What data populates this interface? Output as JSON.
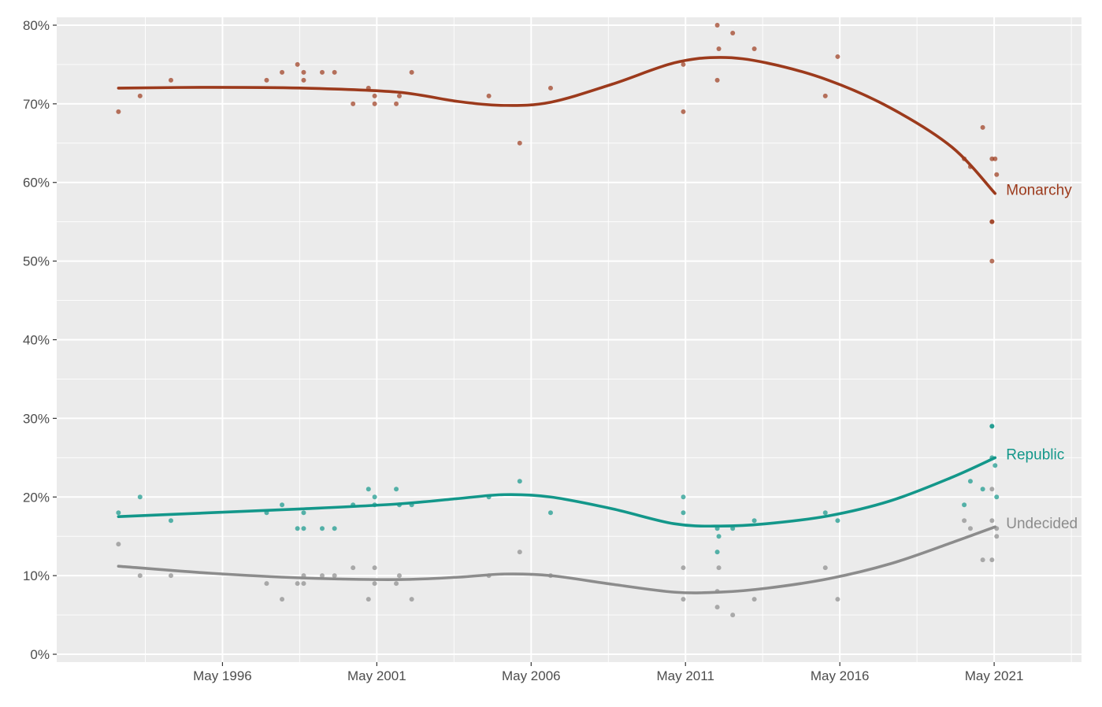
{
  "chart_data": {
    "type": "scatter",
    "title": "",
    "xlabel": "",
    "ylabel": "",
    "x_ticks": [
      "May 1996",
      "May 2001",
      "May 2006",
      "May 2011",
      "May 2016",
      "May 2021"
    ],
    "x_tick_values": [
      1996.37,
      2001.37,
      2006.37,
      2011.37,
      2016.37,
      2021.37
    ],
    "xlim": [
      1991.0,
      2024.2
    ],
    "y_ticks": [
      "0%",
      "10%",
      "20%",
      "30%",
      "40%",
      "50%",
      "60%",
      "70%",
      "80%"
    ],
    "y_tick_values": [
      0,
      10,
      20,
      30,
      40,
      50,
      60,
      70,
      80
    ],
    "ylim": [
      -1,
      81
    ],
    "grid": true,
    "background": "#ebebeb",
    "series": [
      {
        "name": "Monarchy",
        "color": "#9c3a1c",
        "points": [
          [
            1993.0,
            69
          ],
          [
            1993.7,
            71
          ],
          [
            1994.7,
            73
          ],
          [
            1997.8,
            73
          ],
          [
            1998.3,
            74
          ],
          [
            1998.8,
            75
          ],
          [
            1999.0,
            74
          ],
          [
            1999.0,
            73
          ],
          [
            1999.6,
            74
          ],
          [
            2000.0,
            74
          ],
          [
            2000.6,
            70
          ],
          [
            2001.1,
            72
          ],
          [
            2001.3,
            71
          ],
          [
            2001.3,
            70
          ],
          [
            2002.0,
            70
          ],
          [
            2002.1,
            71
          ],
          [
            2002.5,
            74
          ],
          [
            2005.0,
            71
          ],
          [
            2006.0,
            65
          ],
          [
            2007.0,
            72
          ],
          [
            2011.3,
            75
          ],
          [
            2011.3,
            69
          ],
          [
            2012.4,
            80
          ],
          [
            2012.45,
            77
          ],
          [
            2012.4,
            73
          ],
          [
            2012.9,
            79
          ],
          [
            2013.6,
            77
          ],
          [
            2015.9,
            71
          ],
          [
            2016.3,
            76
          ],
          [
            2020.4,
            63
          ],
          [
            2020.6,
            62
          ],
          [
            2021.0,
            67
          ],
          [
            2021.3,
            63
          ],
          [
            2021.4,
            63
          ],
          [
            2021.3,
            55
          ],
          [
            2021.3,
            55
          ],
          [
            2021.3,
            50
          ],
          [
            2021.45,
            61
          ]
        ],
        "trend": [
          [
            1993.0,
            72.0
          ],
          [
            1996.0,
            72.1
          ],
          [
            1999.0,
            72.0
          ],
          [
            2002.0,
            71.5
          ],
          [
            2004.0,
            70.3
          ],
          [
            2005.5,
            69.8
          ],
          [
            2007.0,
            70.2
          ],
          [
            2009.0,
            72.5
          ],
          [
            2011.0,
            75.2
          ],
          [
            2012.5,
            75.9
          ],
          [
            2014.0,
            75.2
          ],
          [
            2016.0,
            73.0
          ],
          [
            2018.0,
            69.5
          ],
          [
            2020.0,
            64.5
          ],
          [
            2021.4,
            58.6
          ]
        ]
      },
      {
        "name": "Republic",
        "color": "#13978a",
        "points": [
          [
            1993.0,
            18
          ],
          [
            1993.7,
            20
          ],
          [
            1994.7,
            17
          ],
          [
            1997.8,
            18
          ],
          [
            1998.3,
            19
          ],
          [
            1998.8,
            16
          ],
          [
            1999.0,
            16
          ],
          [
            1999.0,
            18
          ],
          [
            1999.6,
            16
          ],
          [
            2000.0,
            16
          ],
          [
            2000.6,
            19
          ],
          [
            2001.1,
            21
          ],
          [
            2001.3,
            20
          ],
          [
            2001.3,
            19
          ],
          [
            2002.0,
            21
          ],
          [
            2002.1,
            19
          ],
          [
            2002.5,
            19
          ],
          [
            2005.0,
            20
          ],
          [
            2006.0,
            22
          ],
          [
            2007.0,
            18
          ],
          [
            2011.3,
            20
          ],
          [
            2011.3,
            18
          ],
          [
            2012.4,
            16
          ],
          [
            2012.45,
            15
          ],
          [
            2012.4,
            13
          ],
          [
            2012.9,
            16
          ],
          [
            2013.6,
            17
          ],
          [
            2015.9,
            18
          ],
          [
            2016.3,
            17
          ],
          [
            2020.4,
            19
          ],
          [
            2020.6,
            22
          ],
          [
            2021.0,
            21
          ],
          [
            2021.3,
            25
          ],
          [
            2021.4,
            24
          ],
          [
            2021.3,
            29
          ],
          [
            2021.3,
            29
          ],
          [
            2021.45,
            20
          ]
        ],
        "trend": [
          [
            1993.0,
            17.5
          ],
          [
            1996.0,
            18.0
          ],
          [
            1999.0,
            18.5
          ],
          [
            2002.0,
            19.1
          ],
          [
            2004.0,
            19.8
          ],
          [
            2005.5,
            20.3
          ],
          [
            2007.0,
            20.0
          ],
          [
            2009.0,
            18.5
          ],
          [
            2011.0,
            16.6
          ],
          [
            2012.5,
            16.3
          ],
          [
            2014.0,
            16.6
          ],
          [
            2016.0,
            17.6
          ],
          [
            2018.0,
            19.5
          ],
          [
            2020.0,
            22.5
          ],
          [
            2021.4,
            25.0
          ]
        ]
      },
      {
        "name": "Undecided",
        "color": "#8c8c8c",
        "points": [
          [
            1993.0,
            14
          ],
          [
            1993.7,
            10
          ],
          [
            1994.7,
            10
          ],
          [
            1997.8,
            9
          ],
          [
            1998.3,
            7
          ],
          [
            1998.8,
            9
          ],
          [
            1999.0,
            10
          ],
          [
            1999.0,
            9
          ],
          [
            1999.6,
            10
          ],
          [
            2000.0,
            10
          ],
          [
            2000.6,
            11
          ],
          [
            2001.1,
            7
          ],
          [
            2001.3,
            11
          ],
          [
            2001.3,
            9
          ],
          [
            2002.0,
            9
          ],
          [
            2002.1,
            10
          ],
          [
            2002.5,
            7
          ],
          [
            2005.0,
            10
          ],
          [
            2006.0,
            13
          ],
          [
            2007.0,
            10
          ],
          [
            2011.3,
            11
          ],
          [
            2011.3,
            7
          ],
          [
            2012.4,
            8
          ],
          [
            2012.4,
            6
          ],
          [
            2012.45,
            11
          ],
          [
            2012.9,
            5
          ],
          [
            2013.6,
            7
          ],
          [
            2015.9,
            11
          ],
          [
            2016.3,
            7
          ],
          [
            2020.4,
            17
          ],
          [
            2020.6,
            16
          ],
          [
            2021.0,
            12
          ],
          [
            2021.3,
            12
          ],
          [
            2021.3,
            17
          ],
          [
            2021.3,
            21
          ],
          [
            2021.45,
            16
          ],
          [
            2021.45,
            15
          ]
        ],
        "trend": [
          [
            1993.0,
            11.2
          ],
          [
            1996.0,
            10.3
          ],
          [
            1999.0,
            9.7
          ],
          [
            2002.0,
            9.5
          ],
          [
            2004.0,
            9.8
          ],
          [
            2005.5,
            10.2
          ],
          [
            2007.0,
            10.0
          ],
          [
            2009.0,
            8.9
          ],
          [
            2011.0,
            7.9
          ],
          [
            2012.5,
            7.9
          ],
          [
            2014.0,
            8.4
          ],
          [
            2016.0,
            9.6
          ],
          [
            2018.0,
            11.5
          ],
          [
            2020.0,
            14.2
          ],
          [
            2021.4,
            16.2
          ]
        ]
      }
    ]
  }
}
